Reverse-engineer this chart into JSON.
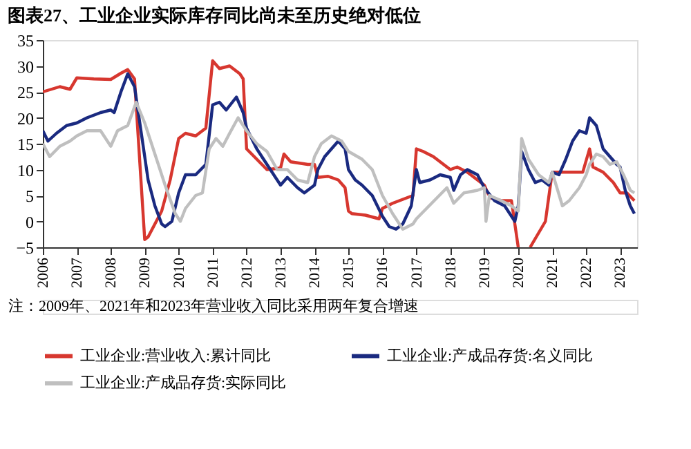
{
  "chart_data": {
    "type": "line",
    "title": "图表27、工业企业实际库存同比尚未至历史绝对低位",
    "xlim": [
      2006,
      2023.5
    ],
    "xticks": [
      2006,
      2007,
      2008,
      2009,
      2010,
      2011,
      2012,
      2013,
      2014,
      2015,
      2016,
      2017,
      2018,
      2019,
      2020,
      2021,
      2022,
      2023
    ],
    "ylim": [
      -5,
      35
    ],
    "yticks": [
      -5,
      0,
      5,
      10,
      15,
      20,
      25,
      30,
      35
    ],
    "grid": false,
    "legend": "bottom",
    "series": [
      {
        "name": "工业企业:营业收入:累计同比",
        "color": "#d7372f",
        "x": [
          2006.0,
          2006.5,
          2006.8,
          2007.0,
          2007.5,
          2008.0,
          2008.3,
          2008.5,
          2008.7,
          2009.0,
          2009.1,
          2009.5,
          2009.75,
          2010.0,
          2010.2,
          2010.5,
          2010.8,
          2011.0,
          2011.2,
          2011.5,
          2011.8,
          2011.9,
          2012.0,
          2012.3,
          2012.6,
          2013.0,
          2013.1,
          2013.3,
          2013.8,
          2014.0,
          2014.1,
          2014.4,
          2014.7,
          2014.9,
          2015.0,
          2015.1,
          2015.5,
          2015.9,
          2016.0,
          2016.3,
          2016.7,
          2016.9,
          2017.0,
          2017.2,
          2017.5,
          2017.8,
          2018.0,
          2018.2,
          2018.5,
          2018.8,
          2019.0,
          2019.1,
          2019.2,
          2019.5,
          2019.8,
          2020.0,
          2020.2,
          2020.35,
          2020.8,
          2021.0,
          2021.2,
          2021.5,
          2021.9,
          2022.1,
          2022.2,
          2022.5,
          2022.8,
          2023.0,
          2023.2,
          2023.42
        ],
        "values": [
          25,
          26,
          25.5,
          27.7,
          27.5,
          27.4,
          28.6,
          29.3,
          27.5,
          -3.5,
          -3,
          2,
          8,
          16,
          17,
          16.5,
          18,
          31,
          29.5,
          30,
          28.5,
          27.5,
          14,
          12,
          10,
          10.3,
          13,
          11.5,
          11,
          11,
          8.5,
          8.7,
          8,
          6.5,
          2,
          1.5,
          1.2,
          0.5,
          2.5,
          3.5,
          4.5,
          5,
          14,
          13.5,
          12.5,
          11,
          10,
          10.5,
          9.5,
          8,
          7,
          5.5,
          4.5,
          4,
          4,
          -5,
          null,
          -5,
          0,
          9.5,
          9.5,
          9.5,
          9.5,
          14,
          10.5,
          9.5,
          7.5,
          5.5,
          5.5,
          4
        ]
      },
      {
        "name": "工业企业:产成品存货:名义同比",
        "color": "#1a2a80",
        "x": [
          2006.0,
          2006.15,
          2006.4,
          2006.7,
          2007.0,
          2007.3,
          2007.7,
          2008.0,
          2008.1,
          2008.3,
          2008.5,
          2008.7,
          2008.9,
          2009.1,
          2009.3,
          2009.5,
          2009.6,
          2009.8,
          2010.0,
          2010.2,
          2010.5,
          2010.8,
          2011.0,
          2011.2,
          2011.4,
          2011.7,
          2011.9,
          2012.0,
          2012.3,
          2012.6,
          2012.9,
          2013.0,
          2013.2,
          2013.5,
          2013.7,
          2013.9,
          2014.0,
          2014.1,
          2014.3,
          2014.5,
          2014.7,
          2014.9,
          2015.0,
          2015.2,
          2015.4,
          2015.7,
          2016.0,
          2016.2,
          2016.4,
          2016.6,
          2016.85,
          2017.0,
          2017.1,
          2017.4,
          2017.7,
          2018.0,
          2018.1,
          2018.3,
          2018.5,
          2018.8,
          2019.0,
          2019.3,
          2019.6,
          2019.8,
          2019.9,
          2020.0,
          2020.1,
          2020.3,
          2020.5,
          2020.7,
          2020.9,
          2021.0,
          2021.2,
          2021.4,
          2021.6,
          2021.8,
          2022.0,
          2022.1,
          2022.3,
          2022.5,
          2022.7,
          2022.9,
          2023.0,
          2023.15,
          2023.3,
          2023.42
        ],
        "values": [
          17.5,
          15.5,
          17,
          18.5,
          19,
          20,
          21,
          21.5,
          21,
          25,
          28.5,
          26,
          17,
          8,
          3,
          -0.5,
          -1,
          0,
          5.5,
          9,
          9,
          11,
          22.5,
          23,
          21.5,
          24,
          21,
          18,
          14,
          11,
          8,
          7,
          8.5,
          6.5,
          5.5,
          6.5,
          7,
          10,
          12.5,
          14,
          15.5,
          14,
          10,
          8,
          7,
          5,
          1,
          -1,
          -1.5,
          -0.5,
          3,
          10,
          7.5,
          8,
          9,
          8.5,
          6,
          9,
          10,
          9,
          6.5,
          4,
          3,
          1,
          0,
          3,
          13.5,
          10,
          7.5,
          8,
          7,
          9.5,
          9,
          12,
          15.5,
          17.5,
          17,
          20,
          18.5,
          14,
          12.5,
          11,
          10.5,
          6,
          3,
          1.5
        ]
      },
      {
        "name": "工业企业:产成品存货:实际同比",
        "color": "#bfbfbf",
        "x": [
          2006.0,
          2006.2,
          2006.5,
          2006.8,
          2007.0,
          2007.3,
          2007.7,
          2008.0,
          2008.2,
          2008.5,
          2008.75,
          2009.0,
          2009.3,
          2009.6,
          2009.9,
          2010.05,
          2010.2,
          2010.5,
          2010.7,
          2010.9,
          2011.1,
          2011.3,
          2011.5,
          2011.75,
          2012.0,
          2012.3,
          2012.6,
          2012.9,
          2013.2,
          2013.5,
          2013.8,
          2014.0,
          2014.2,
          2014.5,
          2014.8,
          2015.0,
          2015.4,
          2015.7,
          2016.0,
          2016.3,
          2016.6,
          2016.9,
          2017.0,
          2017.3,
          2017.6,
          2017.9,
          2018.1,
          2018.4,
          2018.8,
          2019.0,
          2019.05,
          2019.15,
          2019.5,
          2019.8,
          2020.0,
          2020.1,
          2020.3,
          2020.6,
          2020.9,
          2021.0,
          2021.3,
          2021.5,
          2021.8,
          2022.0,
          2022.1,
          2022.3,
          2022.5,
          2022.7,
          2022.9,
          2023.1,
          2023.3,
          2023.42
        ],
        "values": [
          15,
          12.5,
          14.5,
          15.5,
          16.5,
          17.5,
          17.5,
          14.5,
          17.5,
          18.5,
          23,
          19,
          13,
          7,
          1.5,
          0,
          2.5,
          5,
          5.5,
          14,
          16,
          14.5,
          17,
          20,
          17.5,
          15,
          13.5,
          10,
          10,
          8,
          7.5,
          12.5,
          15,
          16.5,
          15.5,
          13.5,
          12,
          10,
          5,
          1.5,
          -1.5,
          -0.5,
          0.5,
          2.5,
          4.5,
          6.5,
          3.5,
          5.5,
          6,
          6.5,
          0,
          5,
          4,
          3,
          2,
          16,
          12,
          9,
          7.5,
          9.5,
          3,
          4,
          6.5,
          9,
          11,
          13,
          12.5,
          11,
          11.5,
          9,
          6,
          5.5
        ]
      }
    ],
    "annotations": [
      "注：2009年、2021年和2023年营业收入同比采用两年复合增速"
    ]
  }
}
